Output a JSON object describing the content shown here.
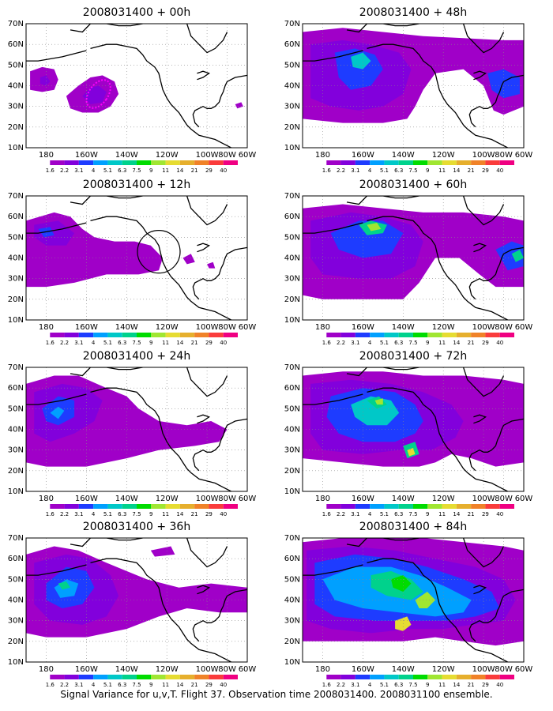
{
  "caption": "Signal Variance for u,v,T. Flight 37. Observation time 2008031400. 2008031100 ensemble.",
  "x_ticks": [
    "180",
    "160W",
    "140W",
    "120W",
    "100W",
    "80W",
    "60W"
  ],
  "y_ticks": [
    "10N",
    "20N",
    "30N",
    "40N",
    "50N",
    "60N",
    "70N"
  ],
  "colorbar": {
    "labels": [
      "1.6",
      "2.2",
      "3.1",
      "4",
      "5.1",
      "6.3",
      "7.5",
      "9",
      "11",
      "14",
      "21",
      "29",
      "40"
    ],
    "colors": [
      "#a000c8",
      "#8200dc",
      "#1e3cff",
      "#00a0ff",
      "#00c8c8",
      "#00d28c",
      "#00dc00",
      "#a0e632",
      "#e6dc32",
      "#e6af2d",
      "#f08228",
      "#fa3c3c",
      "#f00082"
    ]
  },
  "panels": [
    {
      "title": "2008031400 + 00h"
    },
    {
      "title": "2008031400 + 48h"
    },
    {
      "title": "2008031400 + 12h"
    },
    {
      "title": "2008031400 + 60h"
    },
    {
      "title": "2008031400 + 24h"
    },
    {
      "title": "2008031400 + 72h"
    },
    {
      "title": "2008031400 + 36h"
    },
    {
      "title": "2008031400 + 84h"
    }
  ],
  "colors": {
    "violet": "#a000c8",
    "purple": "#8200dc",
    "blue": "#1e3cff",
    "light_blue": "#00a0ff",
    "cyan": "#00c8c8",
    "teal": "#00d28c",
    "green": "#00dc00",
    "yellow_green": "#a0e632",
    "yellow": "#e6dc32",
    "observation_track": "#ff00ff"
  }
}
